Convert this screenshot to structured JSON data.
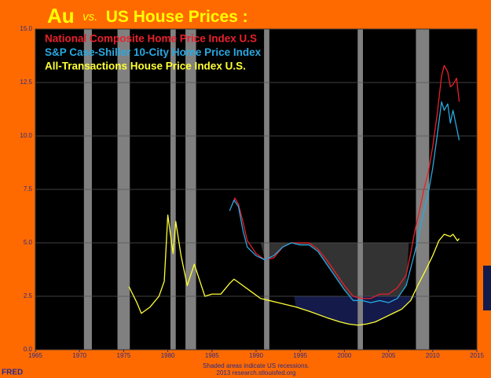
{
  "chart_data": {
    "type": "line",
    "title": [
      "Au",
      "vs.",
      "US House Prices :"
    ],
    "title_color": "#ffff00",
    "xlim": [
      1965,
      2015
    ],
    "xticks": [
      1965,
      1970,
      1975,
      1980,
      1985,
      1990,
      1995,
      2000,
      2005,
      2010,
      2015
    ],
    "ylim": [
      0,
      15
    ],
    "yticks": [
      {
        "value": 0,
        "label": "0.0"
      },
      2.5,
      {
        "value": 5,
        "label": "5.0"
      },
      7.5,
      {
        "value": 10,
        "label": "10.0"
      },
      12.5,
      {
        "value": 15,
        "label": "15.0"
      }
    ],
    "grid": true,
    "background": "#000000",
    "recessions": [
      [
        1970.5,
        1971.4
      ],
      [
        1974.3,
        1975.7
      ],
      [
        1980.3,
        1980.9
      ],
      [
        1982.0,
        1983.2
      ],
      [
        1990.9,
        1991.5
      ],
      [
        2001.5,
        2002.1
      ],
      [
        2008.1,
        2009.6
      ]
    ],
    "recession_color": "#808080",
    "shaded_regions": [
      {
        "x": [
          1990.5,
          2007.3
        ],
        "level": 5.0,
        "series": 1,
        "color": "#333333"
      },
      {
        "x": [
          1994.3,
          2008.2
        ],
        "level": 2.5,
        "series": 2,
        "color": "#141a4a"
      }
    ],
    "series": [
      {
        "name": "National Composite Home Price Index U.S",
        "color": "#e8202a",
        "x": [
          1987.3,
          1987.6,
          1988,
          1988.5,
          1989,
          1989.5,
          1990,
          1991,
          1992,
          1993,
          1994,
          1995,
          1996,
          1997,
          1998,
          1999,
          2000,
          2001,
          2002,
          2003,
          2004,
          2005,
          2006,
          2007,
          2007.5,
          2008,
          2008.5,
          2009,
          2009.5,
          2010,
          2010.5,
          2011,
          2011.3,
          2011.7,
          2012,
          2012.3,
          2012.7,
          2013
        ],
        "values": [
          6.8,
          7.1,
          6.8,
          6.0,
          5.1,
          4.8,
          4.5,
          4.2,
          4.3,
          4.8,
          5.0,
          5.0,
          5.0,
          4.7,
          4.2,
          3.6,
          3.0,
          2.5,
          2.4,
          2.4,
          2.6,
          2.6,
          2.9,
          3.5,
          4.5,
          5.6,
          6.5,
          7.5,
          8.3,
          9.5,
          11.0,
          12.8,
          13.3,
          13.0,
          12.3,
          12.4,
          12.7,
          11.6
        ]
      },
      {
        "name": "S&P Case-Shiller 10-City Home Price Index",
        "color": "#29a8e0",
        "x": [
          1987,
          1987.5,
          1988,
          1988.5,
          1989,
          1989.5,
          1990,
          1991,
          1992,
          1993,
          1994,
          1995,
          1996,
          1997,
          1998,
          1999,
          2000,
          2001,
          2002,
          2003,
          2004,
          2005,
          2006,
          2007,
          2007.5,
          2008,
          2008.5,
          2009,
          2009.5,
          2010,
          2010.5,
          2011,
          2011.3,
          2011.7,
          2012,
          2012.3,
          2012.7,
          2013
        ],
        "values": [
          6.5,
          7.0,
          6.7,
          5.6,
          4.8,
          4.6,
          4.4,
          4.2,
          4.4,
          4.8,
          5.0,
          4.9,
          4.9,
          4.6,
          4.0,
          3.4,
          2.8,
          2.3,
          2.3,
          2.2,
          2.3,
          2.2,
          2.4,
          3.0,
          3.8,
          4.6,
          5.5,
          6.5,
          7.3,
          8.5,
          10.0,
          11.6,
          11.2,
          11.5,
          10.6,
          11.2,
          10.4,
          9.8
        ]
      },
      {
        "name": "All-Transactions House Price Index U.S.",
        "color": "#ffff33",
        "x": [
          1975.6,
          1976.5,
          1977,
          1978,
          1979,
          1979.6,
          1980,
          1980.6,
          1980.9,
          1981.5,
          1982.2,
          1983,
          1984.2,
          1985,
          1986,
          1987,
          1987.5,
          1988.5,
          1989.5,
          1990.5,
          1991.5,
          1992.5,
          1993.5,
          1994.5,
          1996,
          1998,
          1999.5,
          2000.5,
          2001.5,
          2002.5,
          2003.5,
          2004.5,
          2005.5,
          2006.5,
          2007.5,
          2008.3,
          2009.3,
          2010,
          2010.7,
          2011.3,
          2012,
          2012.3,
          2012.8,
          2013
        ],
        "values": [
          2.95,
          2.2,
          1.7,
          2.0,
          2.5,
          3.2,
          6.3,
          4.5,
          6.0,
          4.4,
          3.0,
          4.0,
          2.5,
          2.6,
          2.6,
          3.1,
          3.3,
          3.0,
          2.7,
          2.4,
          2.3,
          2.2,
          2.1,
          2.0,
          1.8,
          1.5,
          1.3,
          1.2,
          1.15,
          1.2,
          1.3,
          1.5,
          1.7,
          1.9,
          2.3,
          3.0,
          3.8,
          4.4,
          5.1,
          5.4,
          5.3,
          5.4,
          5.1,
          5.2
        ]
      }
    ],
    "notes": [
      "Shaded areas indicate US recessions.",
      "2013 research.stlouisfed.org"
    ],
    "source_logo": "FRED"
  }
}
